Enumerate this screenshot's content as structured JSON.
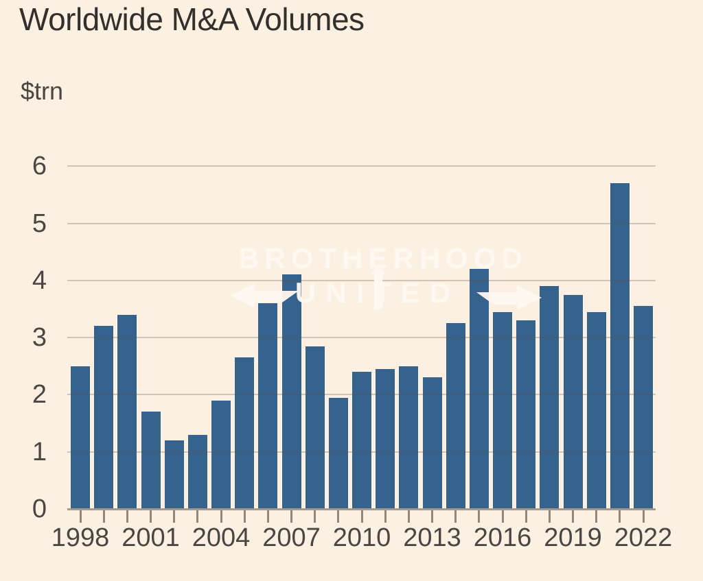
{
  "header": {
    "title": "Worldwide M&A Volumes",
    "unit_label": "$trn"
  },
  "chart_data": {
    "type": "bar",
    "title": "Worldwide M&A Volumes",
    "ylabel": "$trn",
    "xlabel": "",
    "ylim": [
      0,
      6
    ],
    "y_ticks": [
      0,
      1,
      2,
      3,
      4,
      5,
      6
    ],
    "grid": true,
    "legend": "none",
    "categories": [
      1998,
      1999,
      2000,
      2001,
      2002,
      2003,
      2004,
      2005,
      2006,
      2007,
      2008,
      2009,
      2010,
      2011,
      2012,
      2013,
      2014,
      2015,
      2016,
      2017,
      2018,
      2019,
      2020,
      2021,
      2022
    ],
    "values": [
      2.5,
      3.2,
      3.4,
      1.7,
      1.2,
      1.3,
      1.9,
      2.65,
      3.6,
      4.1,
      2.85,
      1.95,
      2.4,
      2.45,
      2.5,
      2.3,
      3.25,
      4.2,
      3.45,
      3.3,
      3.9,
      3.75,
      3.45,
      5.7,
      3.55
    ],
    "x_tick_labels": [
      "1998",
      "2001",
      "2004",
      "2007",
      "2010",
      "2013",
      "2016",
      "2019",
      "2022"
    ],
    "colors": {
      "bar": "#36638d",
      "background": "#fcf0e3",
      "gridline": "rgba(96,78,60,0.28)",
      "axis_line": "#a59a8c",
      "tick": "#8f8779",
      "title_text": "#33302c",
      "axis_text": "#4b4641"
    }
  },
  "watermark": {
    "line1": "BROTHERHOOD",
    "line2": "UNITED",
    "color": "rgba(255,248,240,0.95)",
    "arrows": [
      "left-arrow",
      "up-arrow",
      "right-arrow"
    ]
  }
}
